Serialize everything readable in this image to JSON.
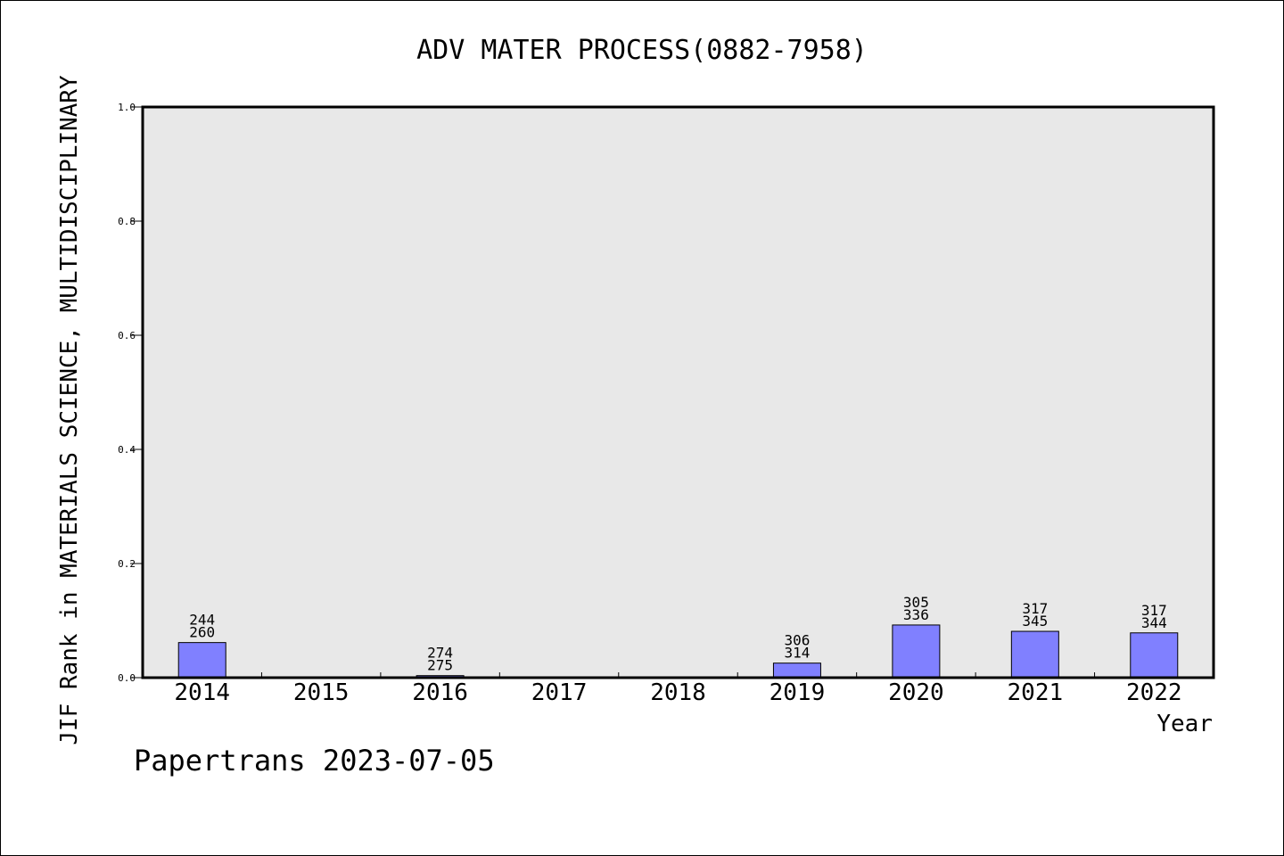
{
  "chart_data": {
    "type": "bar",
    "title": "ADV MATER PROCESS(0882-7958)",
    "xlabel": "Year",
    "ylabel": "JIF Rank in MATERIALS SCIENCE, MULTIDISCIPLINARY",
    "ylim": [
      0,
      1.0
    ],
    "yticks": [
      "0.0",
      "0.2",
      "0.4",
      "0.6",
      "0.8",
      "1.0"
    ],
    "categories": [
      "2014",
      "2015",
      "2016",
      "2017",
      "2018",
      "2019",
      "2020",
      "2021",
      "2022"
    ],
    "values": [
      0.0615,
      0,
      0.0036,
      0,
      0,
      0.0255,
      0.0923,
      0.0812,
      0.0785
    ],
    "labels_top": [
      "244",
      "",
      "274",
      "",
      "",
      "306",
      "305",
      "317",
      "317"
    ],
    "labels_bottom": [
      "260",
      "",
      "275",
      "",
      "",
      "314",
      "336",
      "345",
      "344"
    ],
    "colors": {
      "bar": "#8080ff",
      "plot_bg": "#e8e8e8"
    },
    "grid": false,
    "footer": "Papertrans 2023-07-05"
  }
}
